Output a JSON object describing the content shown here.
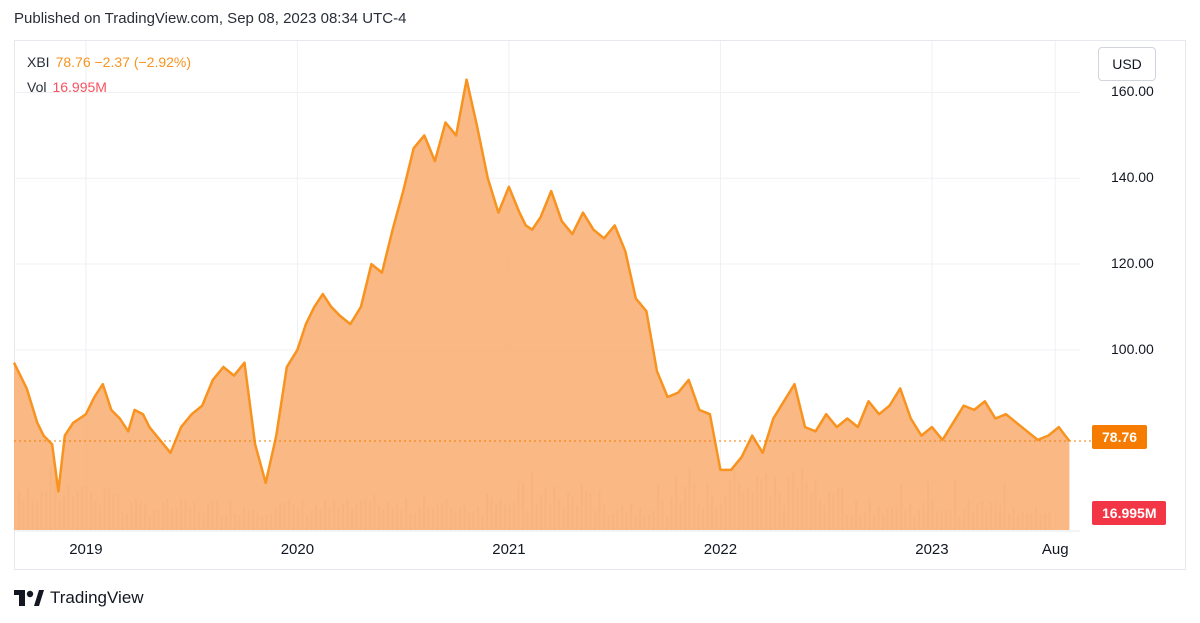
{
  "header": {
    "published": "Published on TradingView.com, Sep 08, 2023 08:34 UTC-4"
  },
  "legend": {
    "symbol": "XBI",
    "price_change": "78.76 −2.37 (−2.92%)",
    "vol_label": "Vol",
    "vol_value": "16.995M"
  },
  "currency": "USD",
  "badges": {
    "price": "78.76",
    "volume": "16.995M"
  },
  "brand": {
    "name": "TradingView",
    "icon": "tradingview-logo-icon"
  },
  "colors": {
    "line": "#f7931e",
    "fill": "#f9b27a",
    "volume": "#d9a77a",
    "price_badge": "#f57c00",
    "volume_badge": "#f23645"
  },
  "chart_data": {
    "type": "area",
    "symbol": "XBI",
    "currency": "USD",
    "ylim": [
      58,
      172
    ],
    "yticks": [
      100,
      120,
      140,
      160
    ],
    "ytick_labels": [
      "100.00",
      "120.00",
      "140.00",
      "160.00"
    ],
    "xticks": [
      {
        "x": 2019.0,
        "label": "2019"
      },
      {
        "x": 2020.0,
        "label": "2020"
      },
      {
        "x": 2021.0,
        "label": "2021"
      },
      {
        "x": 2022.0,
        "label": "2022"
      },
      {
        "x": 2023.0,
        "label": "2023"
      },
      {
        "x": 2023.583,
        "label": "Aug"
      }
    ],
    "xlim": [
      2018.66,
      2023.7
    ],
    "last_price": 78.76,
    "last_volume": "16.995M",
    "grid": true,
    "series": [
      {
        "x": [
          2018.66,
          2018.72,
          2018.77,
          2018.8,
          2018.84,
          2018.87,
          2018.9,
          2018.94,
          2018.97,
          2019.0,
          2019.04,
          2019.08,
          2019.12,
          2019.16,
          2019.2,
          2019.23,
          2019.27,
          2019.3,
          2019.35,
          2019.4,
          2019.45,
          2019.5,
          2019.55,
          2019.6,
          2019.65,
          2019.7,
          2019.75,
          2019.8,
          2019.85,
          2019.9,
          2019.95,
          2020.0,
          2020.04,
          2020.08,
          2020.12,
          2020.16,
          2020.2,
          2020.25,
          2020.3,
          2020.35,
          2020.4,
          2020.45,
          2020.5,
          2020.55,
          2020.6,
          2020.65,
          2020.7,
          2020.75,
          2020.8,
          2020.85,
          2020.9,
          2020.95,
          2021.0,
          2021.05,
          2021.08,
          2021.11,
          2021.15,
          2021.2,
          2021.25,
          2021.3,
          2021.35,
          2021.4,
          2021.45,
          2021.5,
          2021.55,
          2021.6,
          2021.65,
          2021.7,
          2021.75,
          2021.8,
          2021.85,
          2021.9,
          2021.95,
          2022.0,
          2022.05,
          2022.1,
          2022.15,
          2022.2,
          2022.25,
          2022.3,
          2022.35,
          2022.4,
          2022.45,
          2022.5,
          2022.55,
          2022.6,
          2022.65,
          2022.7,
          2022.75,
          2022.8,
          2022.85,
          2022.9,
          2022.95,
          2023.0,
          2023.05,
          2023.1,
          2023.15,
          2023.2,
          2023.25,
          2023.3,
          2023.35,
          2023.4,
          2023.45,
          2023.5,
          2023.55,
          2023.6,
          2023.63,
          2023.65
        ],
        "y": [
          97,
          91,
          83,
          80,
          78,
          67,
          80,
          83,
          84,
          85,
          89,
          92,
          86,
          84,
          81,
          86,
          85,
          82,
          79,
          76,
          82,
          85,
          87,
          93,
          96,
          94,
          97,
          78,
          69,
          80,
          96,
          100,
          106,
          110,
          113,
          110,
          108,
          106,
          110,
          120,
          118,
          128,
          137,
          147,
          150,
          144,
          153,
          150,
          163,
          152,
          140,
          132,
          138,
          132,
          129,
          128,
          131,
          137,
          130,
          127,
          132,
          128,
          126,
          129,
          123,
          112,
          109,
          95,
          89,
          90,
          93,
          86,
          85,
          72,
          72,
          75,
          80,
          76,
          84,
          88,
          92,
          82,
          81,
          85,
          82,
          84,
          82,
          88,
          85,
          87,
          91,
          84,
          80,
          82,
          79,
          83,
          87,
          86,
          88,
          84,
          85,
          83,
          81,
          79,
          80,
          82,
          80,
          78.76
        ]
      }
    ]
  }
}
